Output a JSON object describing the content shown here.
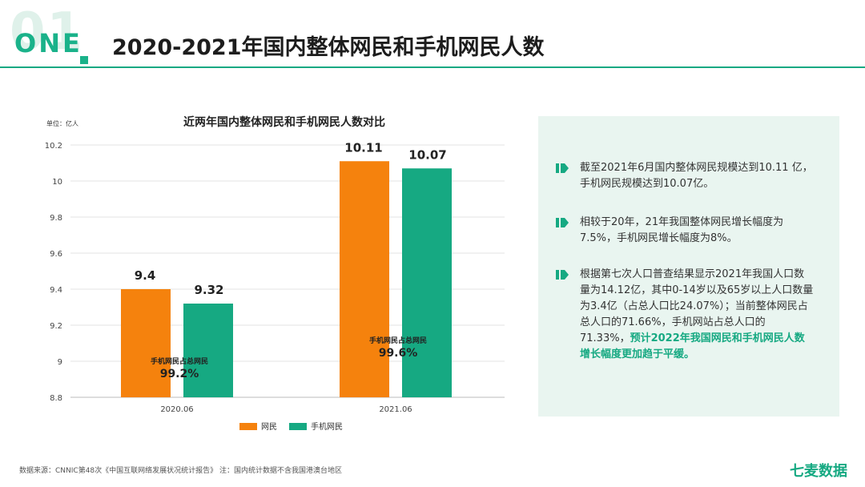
{
  "header": {
    "number": "01",
    "label": "ONE",
    "title": "2020-2021年国内整体网民和手机网民人数"
  },
  "chart_data": {
    "type": "bar",
    "title": "近两年国内整体网民和手机网民人数对比",
    "unit_label": "单位：亿人",
    "categories": [
      "2020.06",
      "2021.06"
    ],
    "series": [
      {
        "name": "网民",
        "color": "#f5820d",
        "values": [
          9.4,
          10.11
        ]
      },
      {
        "name": "手机网民",
        "color": "#16a982",
        "values": [
          9.32,
          10.07
        ]
      }
    ],
    "value_labels": [
      [
        "9.4",
        "9.32"
      ],
      [
        "10.11",
        "10.07"
      ]
    ],
    "ylim": [
      8.8,
      10.2
    ],
    "yticks": [
      "8.8",
      "9",
      "9.2",
      "9.4",
      "9.6",
      "9.8",
      "10",
      "10.2"
    ],
    "annotations": [
      {
        "label": "手机网民占总网民",
        "value": "99.2%"
      },
      {
        "label": "手机网民占总网民",
        "value": "99.6%"
      }
    ]
  },
  "panel": {
    "bullet1": "截至2021年6月国内整体网民规模达到10.11 亿，手机网民规模达到10.07亿。",
    "bullet2": "相较于20年，21年我国整体网民增长幅度为7.5%，手机网民增长幅度为8%。",
    "bullet3_text": "根据第七次人口普查结果显示2021年我国人口数量为14.12亿，其中0-14岁以及65岁以上人口数量为3.4亿（占总人口比24.07%）；当前整体网民占总人口的71.66%，手机网站占总人口的71.33%，",
    "bullet3_highlight": "预计2022年我国网民和手机网民人数增长幅度更加趋于平缓。"
  },
  "footer": {
    "source": "数据来源：CNNIC第48次《中国互联网络发展状况统计报告》 注：国内统计数据不含我国港澳台地区",
    "brand": "七麦数据"
  },
  "colors": {
    "accent": "#16a982",
    "orange": "#f5820d"
  }
}
